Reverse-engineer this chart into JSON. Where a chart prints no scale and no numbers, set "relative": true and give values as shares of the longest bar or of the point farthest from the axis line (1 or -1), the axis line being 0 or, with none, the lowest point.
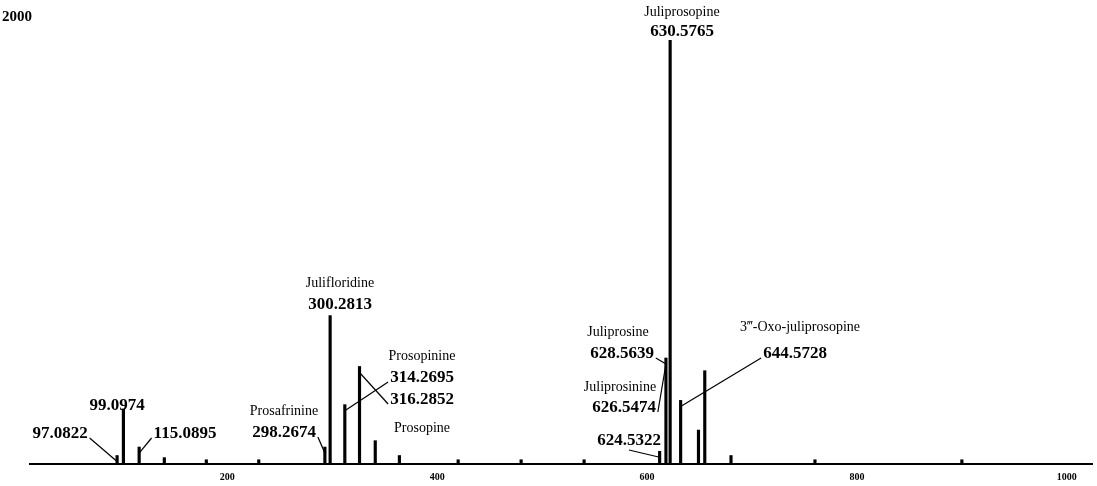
{
  "chart_data": {
    "type": "bar",
    "relative": true,
    "x": [
      95,
      101,
      116,
      140,
      180,
      230,
      293,
      298,
      312,
      326,
      341,
      364,
      420,
      480,
      540,
      612,
      618,
      622,
      632,
      649,
      655,
      680,
      760,
      900
    ],
    "values": [
      0.02,
      0.13,
      0.04,
      0.015,
      0.01,
      0.01,
      0.04,
      0.35,
      0.14,
      0.23,
      0.055,
      0.02,
      0.01,
      0.01,
      0.01,
      0.03,
      0.25,
      1,
      0.15,
      0.08,
      0.22,
      0.02,
      0.01,
      0.01
    ],
    "color": "#000000",
    "xlim": [
      12,
      1024
    ],
    "xticks": [
      200,
      400,
      600,
      800,
      1000
    ],
    "grid": false,
    "legend": false,
    "annotations": [
      "2000",
      {
        "text": "Juliprosopine",
        "x": 622,
        "y": 1
      },
      {
        "text": "630.5765",
        "x": 622,
        "y": 1
      },
      {
        "text": "Julifloridine",
        "x": 298,
        "y": 0.35
      },
      {
        "text": "300.2813",
        "x": 298,
        "y": 0.35
      },
      "Prosopinine",
      {
        "text": "314.2695",
        "x": 312,
        "y": 0.14
      },
      {
        "text": "316.2852",
        "x": 326,
        "y": 0.23
      },
      "Prosopine",
      "Prosafrinine",
      {
        "text": "298.2674",
        "x": 293,
        "y": 0.04
      },
      {
        "text": "99.0974",
        "x": 101,
        "y": 0.13
      },
      {
        "text": "97.0822",
        "x": 95,
        "y": 0.02
      },
      {
        "text": "115.0895",
        "x": 116,
        "y": 0.04
      },
      "Juliprosine",
      {
        "text": "628.5639",
        "x": 618,
        "y": 0.25
      },
      "Juliprosinine",
      {
        "text": "626.5474",
        "x": 618,
        "y": 0.25
      },
      {
        "text": "624.5322",
        "x": 612,
        "y": 0.03
      },
      "3‴-Oxo-juliprosopine",
      {
        "text": "644.5728",
        "x": 632,
        "y": 0.15
      }
    ]
  }
}
